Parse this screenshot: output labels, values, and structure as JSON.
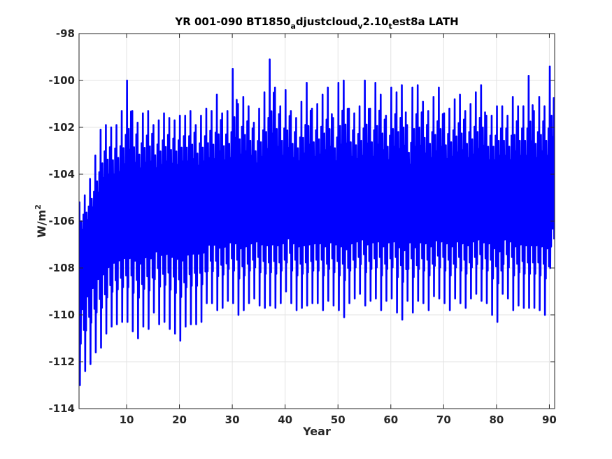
{
  "chart_data": {
    "type": "line",
    "title": {
      "parts": [
        {
          "text": "YR 001-090 BT1850",
          "sub": false
        },
        {
          "text": "a",
          "sub": true
        },
        {
          "text": "djustcloud",
          "sub": false
        },
        {
          "text": "v",
          "sub": true
        },
        {
          "text": "2.10",
          "sub": false
        },
        {
          "text": "t",
          "sub": true
        },
        {
          "text": "est8a LATH",
          "sub": false
        }
      ]
    },
    "xlabel": "Year",
    "ylabel": {
      "base": "W/m",
      "sup": "2"
    },
    "xlim": [
      1,
      91
    ],
    "ylim": [
      -114,
      -98
    ],
    "xticks": [
      10,
      20,
      30,
      40,
      50,
      60,
      70,
      80,
      90
    ],
    "yticks": [
      -114,
      -112,
      -110,
      -108,
      -106,
      -104,
      -102,
      -100,
      -98
    ],
    "grid": true,
    "line_color": "#0000ff",
    "series": [
      {
        "seasonal_cycle_months": [
          0,
          1,
          2,
          3,
          4,
          5,
          6,
          7,
          8,
          9,
          10,
          11
        ],
        "seasonal_cycle_offset": [
          -1.2,
          3.8,
          -3.8,
          0.6,
          -2.6,
          2.4,
          0.2,
          -1.6,
          1.8,
          -0.8,
          2.9,
          -2.2
        ],
        "years": [
          1,
          2,
          3,
          4,
          5,
          6,
          7,
          8,
          9,
          10,
          11,
          12,
          13,
          14,
          15,
          16,
          17,
          18,
          19,
          20,
          21,
          22,
          23,
          24,
          25,
          26,
          27,
          28,
          29,
          30,
          31,
          32,
          33,
          34,
          35,
          36,
          37,
          38,
          39,
          40,
          41,
          42,
          43,
          44,
          45,
          46,
          47,
          48,
          49,
          50,
          51,
          52,
          53,
          54,
          55,
          56,
          57,
          58,
          59,
          60,
          61,
          62,
          63,
          64,
          65,
          66,
          67,
          68,
          69,
          70,
          71,
          72,
          73,
          74,
          75,
          76,
          77,
          78,
          79,
          80,
          81,
          82,
          83,
          84,
          85,
          86,
          87,
          88,
          89,
          90
        ],
        "annual_mean": [
          -107.4,
          -106.9,
          -106.5,
          -106.2,
          -106.0,
          -105.9,
          -105.8,
          -105.7,
          -105.6,
          -105.6,
          -105.5,
          -105.5,
          -105.4,
          -105.4,
          -105.4,
          -105.3,
          -105.3,
          -105.3,
          -105.3,
          -105.2,
          -105.2,
          -105.2,
          -105.2,
          -105.2,
          -105.2,
          -105.2,
          -105.2,
          -105.2,
          -105.1,
          -105.1,
          -105.1,
          -105.1,
          -105.1,
          -105.1,
          -105.1,
          -105.1,
          -105.1,
          -105.1,
          -105.1,
          -105.1,
          -105.1,
          -105.1,
          -105.1,
          -105.1,
          -105.1,
          -105.1,
          -105.1,
          -105.1,
          -105.1,
          -105.1,
          -105.1,
          -105.1,
          -105.1,
          -105.1,
          -105.1,
          -105.1,
          -105.1,
          -105.1,
          -105.1,
          -105.1,
          -105.1,
          -105.1,
          -105.1,
          -105.1,
          -105.1,
          -105.1,
          -105.1,
          -105.1,
          -105.1,
          -105.1,
          -105.1,
          -105.1,
          -105.1,
          -105.1,
          -105.1,
          -105.1,
          -105.1,
          -105.1,
          -105.1,
          -105.1,
          -105.1,
          -105.1,
          -105.1,
          -105.1,
          -105.1,
          -105.1,
          -105.1,
          -105.1,
          -105.1,
          -105.1
        ],
        "annual_max": [
          -105.2,
          -104.9,
          -104.2,
          -103.2,
          -102.1,
          -101.9,
          -102.0,
          -101.9,
          -101.3,
          -100.0,
          -101.3,
          -101.8,
          -101.4,
          -101.3,
          -101.9,
          -101.7,
          -101.4,
          -101.6,
          -101.7,
          -101.5,
          -101.5,
          -101.3,
          -101.9,
          -101.5,
          -101.2,
          -101.3,
          -100.6,
          -101.4,
          -101.3,
          -99.5,
          -101.0,
          -100.7,
          -101.1,
          -101.8,
          -101.2,
          -100.5,
          -99.1,
          -100.3,
          -101.1,
          -100.4,
          -101.3,
          -101.6,
          -100.9,
          -100.1,
          -101.2,
          -101.0,
          -100.6,
          -100.3,
          -101.6,
          -100.1,
          -100.0,
          -101.2,
          -101.4,
          -101.1,
          -100.0,
          -101.2,
          -100.1,
          -100.6,
          -101.5,
          -100.3,
          -100.5,
          -100.2,
          -101.9,
          -100.3,
          -100.2,
          -100.9,
          -101.3,
          -100.7,
          -100.3,
          -101.4,
          -101.2,
          -100.8,
          -100.6,
          -101.3,
          -101.0,
          -100.5,
          -100.2,
          -101.5,
          -101.5,
          -101.1,
          -101.1,
          -101.5,
          -100.7,
          -101.1,
          -101.1,
          -99.8,
          -101.3,
          -100.7,
          -101.1,
          -99.4
        ],
        "annual_min": [
          -113.0,
          -112.4,
          -112.1,
          -111.6,
          -111.4,
          -110.8,
          -110.5,
          -110.4,
          -110.3,
          -110.3,
          -110.7,
          -111.0,
          -110.5,
          -110.6,
          -109.9,
          -110.4,
          -110.3,
          -110.6,
          -110.8,
          -111.1,
          -110.5,
          -110.4,
          -110.4,
          -110.3,
          -109.5,
          -109.5,
          -109.8,
          -109.7,
          -109.4,
          -109.5,
          -110.0,
          -109.8,
          -109.5,
          -109.3,
          -109.6,
          -109.7,
          -109.6,
          -109.7,
          -109.5,
          -109.0,
          -109.5,
          -109.8,
          -109.7,
          -109.6,
          -109.5,
          -109.5,
          -109.8,
          -109.4,
          -109.6,
          -109.8,
          -110.1,
          -109.5,
          -109.3,
          -109.1,
          -109.6,
          -109.4,
          -109.3,
          -109.8,
          -109.4,
          -109.3,
          -109.9,
          -110.2,
          -109.4,
          -109.9,
          -109.4,
          -109.5,
          -109.8,
          -109.2,
          -109.3,
          -109.5,
          -109.8,
          -109.3,
          -109.5,
          -109.7,
          -109.3,
          -109.1,
          -109.4,
          -109.5,
          -110.0,
          -110.3,
          -109.1,
          -109.3,
          -109.8,
          -109.6,
          -109.7,
          -109.7,
          -109.7,
          -109.8,
          -110.0,
          -108.0
        ]
      }
    ]
  }
}
